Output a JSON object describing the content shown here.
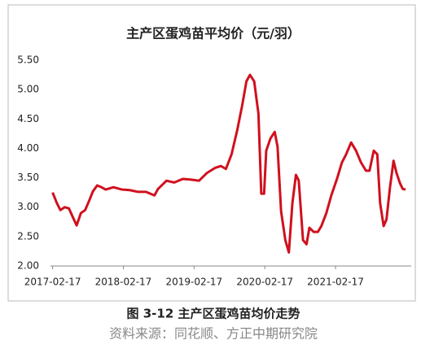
{
  "chart_data": {
    "type": "line",
    "title": "主产区蛋鸡苗平均价（元/羽）",
    "caption": "图 3-12 主产区蛋鸡苗均价走势",
    "source": "资料来源：同花顺、方正中期研究院",
    "xlim": [
      2017.1,
      2022.2
    ],
    "ylim": [
      2.0,
      5.5
    ],
    "xticks": [
      {
        "value": 2017.13,
        "label": "2017-02-17"
      },
      {
        "value": 2018.13,
        "label": "2018-02-17"
      },
      {
        "value": 2019.13,
        "label": "2019-02-17"
      },
      {
        "value": 2020.13,
        "label": "2020-02-17"
      },
      {
        "value": 2021.13,
        "label": "2021-02-17"
      }
    ],
    "yticks": [
      {
        "value": 2.0,
        "label": "2.00"
      },
      {
        "value": 2.5,
        "label": "2.50"
      },
      {
        "value": 3.0,
        "label": "3.00"
      },
      {
        "value": 3.5,
        "label": "3.50"
      },
      {
        "value": 4.0,
        "label": "4.00"
      },
      {
        "value": 4.5,
        "label": "4.50"
      },
      {
        "value": 5.0,
        "label": "5.00"
      },
      {
        "value": 5.5,
        "label": "5.50"
      }
    ],
    "x": [
      2017.13,
      2017.19,
      2017.24,
      2017.3,
      2017.36,
      2017.42,
      2017.47,
      2017.53,
      2017.59,
      2017.65,
      2017.7,
      2017.76,
      2017.82,
      2017.88,
      2017.99,
      2018.11,
      2018.22,
      2018.34,
      2018.45,
      2018.57,
      2018.62,
      2018.74,
      2018.85,
      2018.97,
      2019.08,
      2019.2,
      2019.31,
      2019.43,
      2019.51,
      2019.58,
      2019.66,
      2019.74,
      2019.81,
      2019.87,
      2019.92,
      2019.98,
      2020.04,
      2020.08,
      2020.12,
      2020.15,
      2020.21,
      2020.27,
      2020.31,
      2020.36,
      2020.42,
      2020.47,
      2020.52,
      2020.57,
      2020.61,
      2020.67,
      2020.72,
      2020.76,
      2020.82,
      2020.88,
      2020.93,
      2021.0,
      2021.07,
      2021.15,
      2021.22,
      2021.28,
      2021.35,
      2021.42,
      2021.49,
      2021.56,
      2021.61,
      2021.67,
      2021.72,
      2021.76,
      2021.81,
      2021.85,
      2021.9,
      2021.95,
      2021.99,
      2022.04,
      2022.08,
      2022.12
    ],
    "series": [
      {
        "color": "#d0101e",
        "values": [
          3.25,
          3.07,
          2.95,
          3.0,
          2.98,
          2.82,
          2.69,
          2.9,
          2.95,
          3.12,
          3.27,
          3.37,
          3.34,
          3.3,
          3.34,
          3.3,
          3.29,
          3.26,
          3.26,
          3.2,
          3.31,
          3.45,
          3.42,
          3.48,
          3.47,
          3.45,
          3.58,
          3.67,
          3.7,
          3.65,
          3.9,
          4.31,
          4.73,
          5.14,
          5.25,
          5.14,
          4.59,
          3.23,
          3.23,
          3.96,
          4.17,
          4.28,
          4.03,
          2.93,
          2.44,
          2.23,
          3.07,
          3.55,
          3.45,
          2.44,
          2.37,
          2.65,
          2.58,
          2.58,
          2.68,
          2.9,
          3.2,
          3.48,
          3.76,
          3.9,
          4.1,
          3.96,
          3.76,
          3.62,
          3.62,
          3.96,
          3.9,
          3.07,
          2.68,
          2.79,
          3.34,
          3.79,
          3.59,
          3.41,
          3.31,
          3.3
        ]
      }
    ]
  }
}
